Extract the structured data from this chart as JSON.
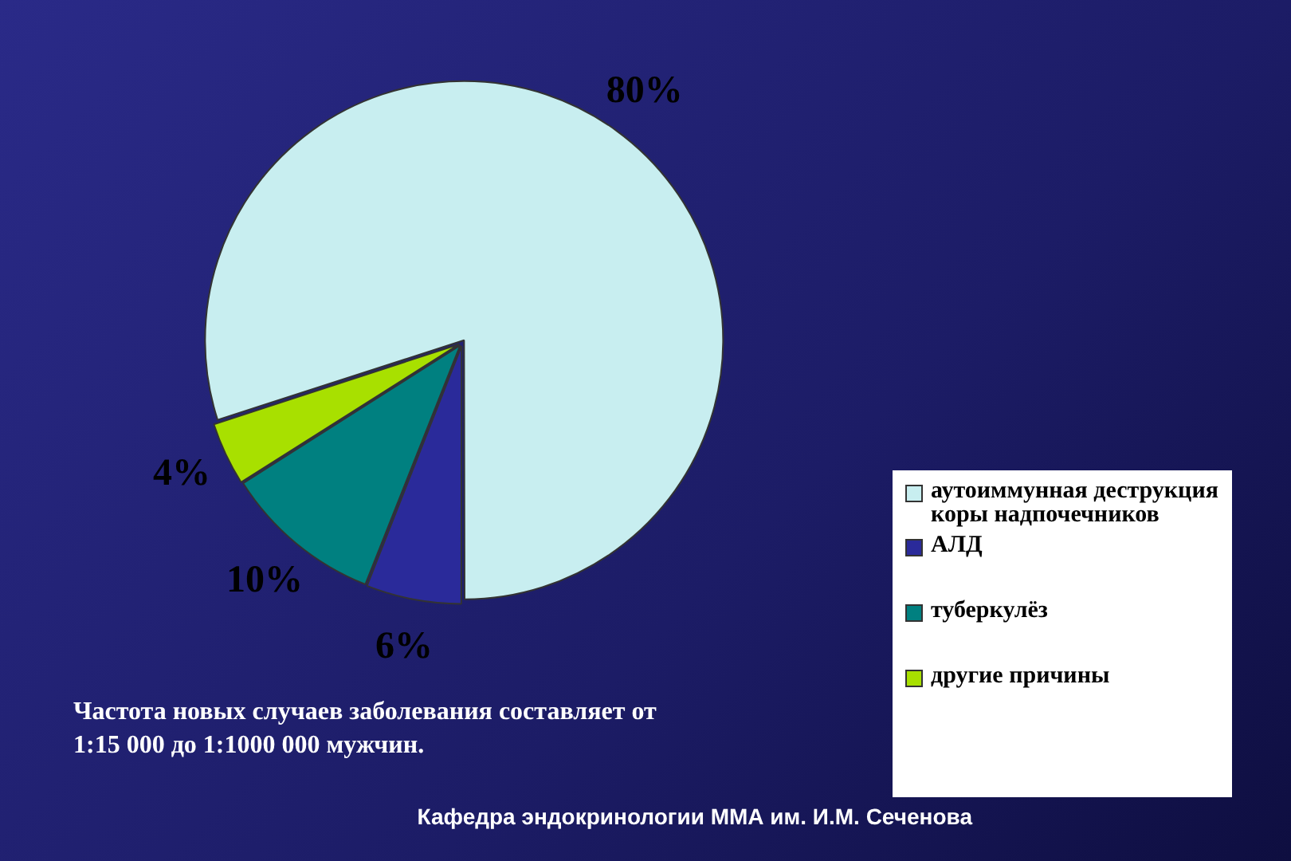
{
  "chart_data": {
    "type": "pie",
    "categories": [
      "аутоиммунная деструкция коры надпочечников",
      "АЛД",
      "туберкулёз",
      "другие причины"
    ],
    "values": [
      80,
      6,
      10,
      4
    ],
    "colors": [
      "#c8eef0",
      "#2a2a9a",
      "#008080",
      "#a8e000"
    ],
    "value_labels": [
      "80%",
      "6%",
      "10%",
      "4%"
    ],
    "legend": "right",
    "annotations": [
      "Частота новых случаев заболевания составляет от 1:15 000 до 1:1000 000 мужчин.",
      "Кафедра эндокринологии ММА им. И.М. Сеченова"
    ]
  }
}
